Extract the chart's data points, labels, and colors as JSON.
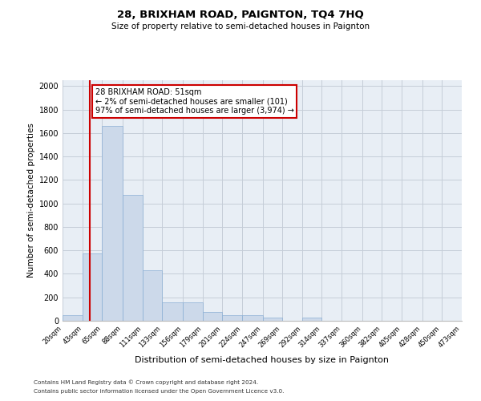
{
  "title": "28, BRIXHAM ROAD, PAIGNTON, TQ4 7HQ",
  "subtitle": "Size of property relative to semi-detached houses in Paignton",
  "xlabel": "Distribution of semi-detached houses by size in Paignton",
  "ylabel": "Number of semi-detached properties",
  "footnote1": "Contains HM Land Registry data © Crown copyright and database right 2024.",
  "footnote2": "Contains public sector information licensed under the Open Government Licence v3.0.",
  "property_size": 51,
  "property_label": "28 BRIXHAM ROAD: 51sqm",
  "smaller_pct": "2%",
  "smaller_n": "101",
  "larger_pct": "97%",
  "larger_n": "3,974",
  "bin_edges": [
    20,
    43,
    65,
    88,
    111,
    133,
    156,
    179,
    201,
    224,
    247,
    269,
    292,
    314,
    337,
    360,
    382,
    405,
    428,
    450,
    473
  ],
  "bar_heights": [
    50,
    575,
    1660,
    1075,
    430,
    155,
    155,
    75,
    50,
    50,
    30,
    0,
    30,
    0,
    0,
    0,
    0,
    0,
    0,
    0
  ],
  "bar_color": "#ccd9ea",
  "bar_edge_color": "#8aaed4",
  "grid_color": "#c5cdd8",
  "background_color": "#e8eef5",
  "red_line_color": "#cc0000",
  "annotation_box_edge": "#cc0000",
  "ylim": [
    0,
    2050
  ],
  "yticks": [
    0,
    200,
    400,
    600,
    800,
    1000,
    1200,
    1400,
    1600,
    1800,
    2000
  ]
}
